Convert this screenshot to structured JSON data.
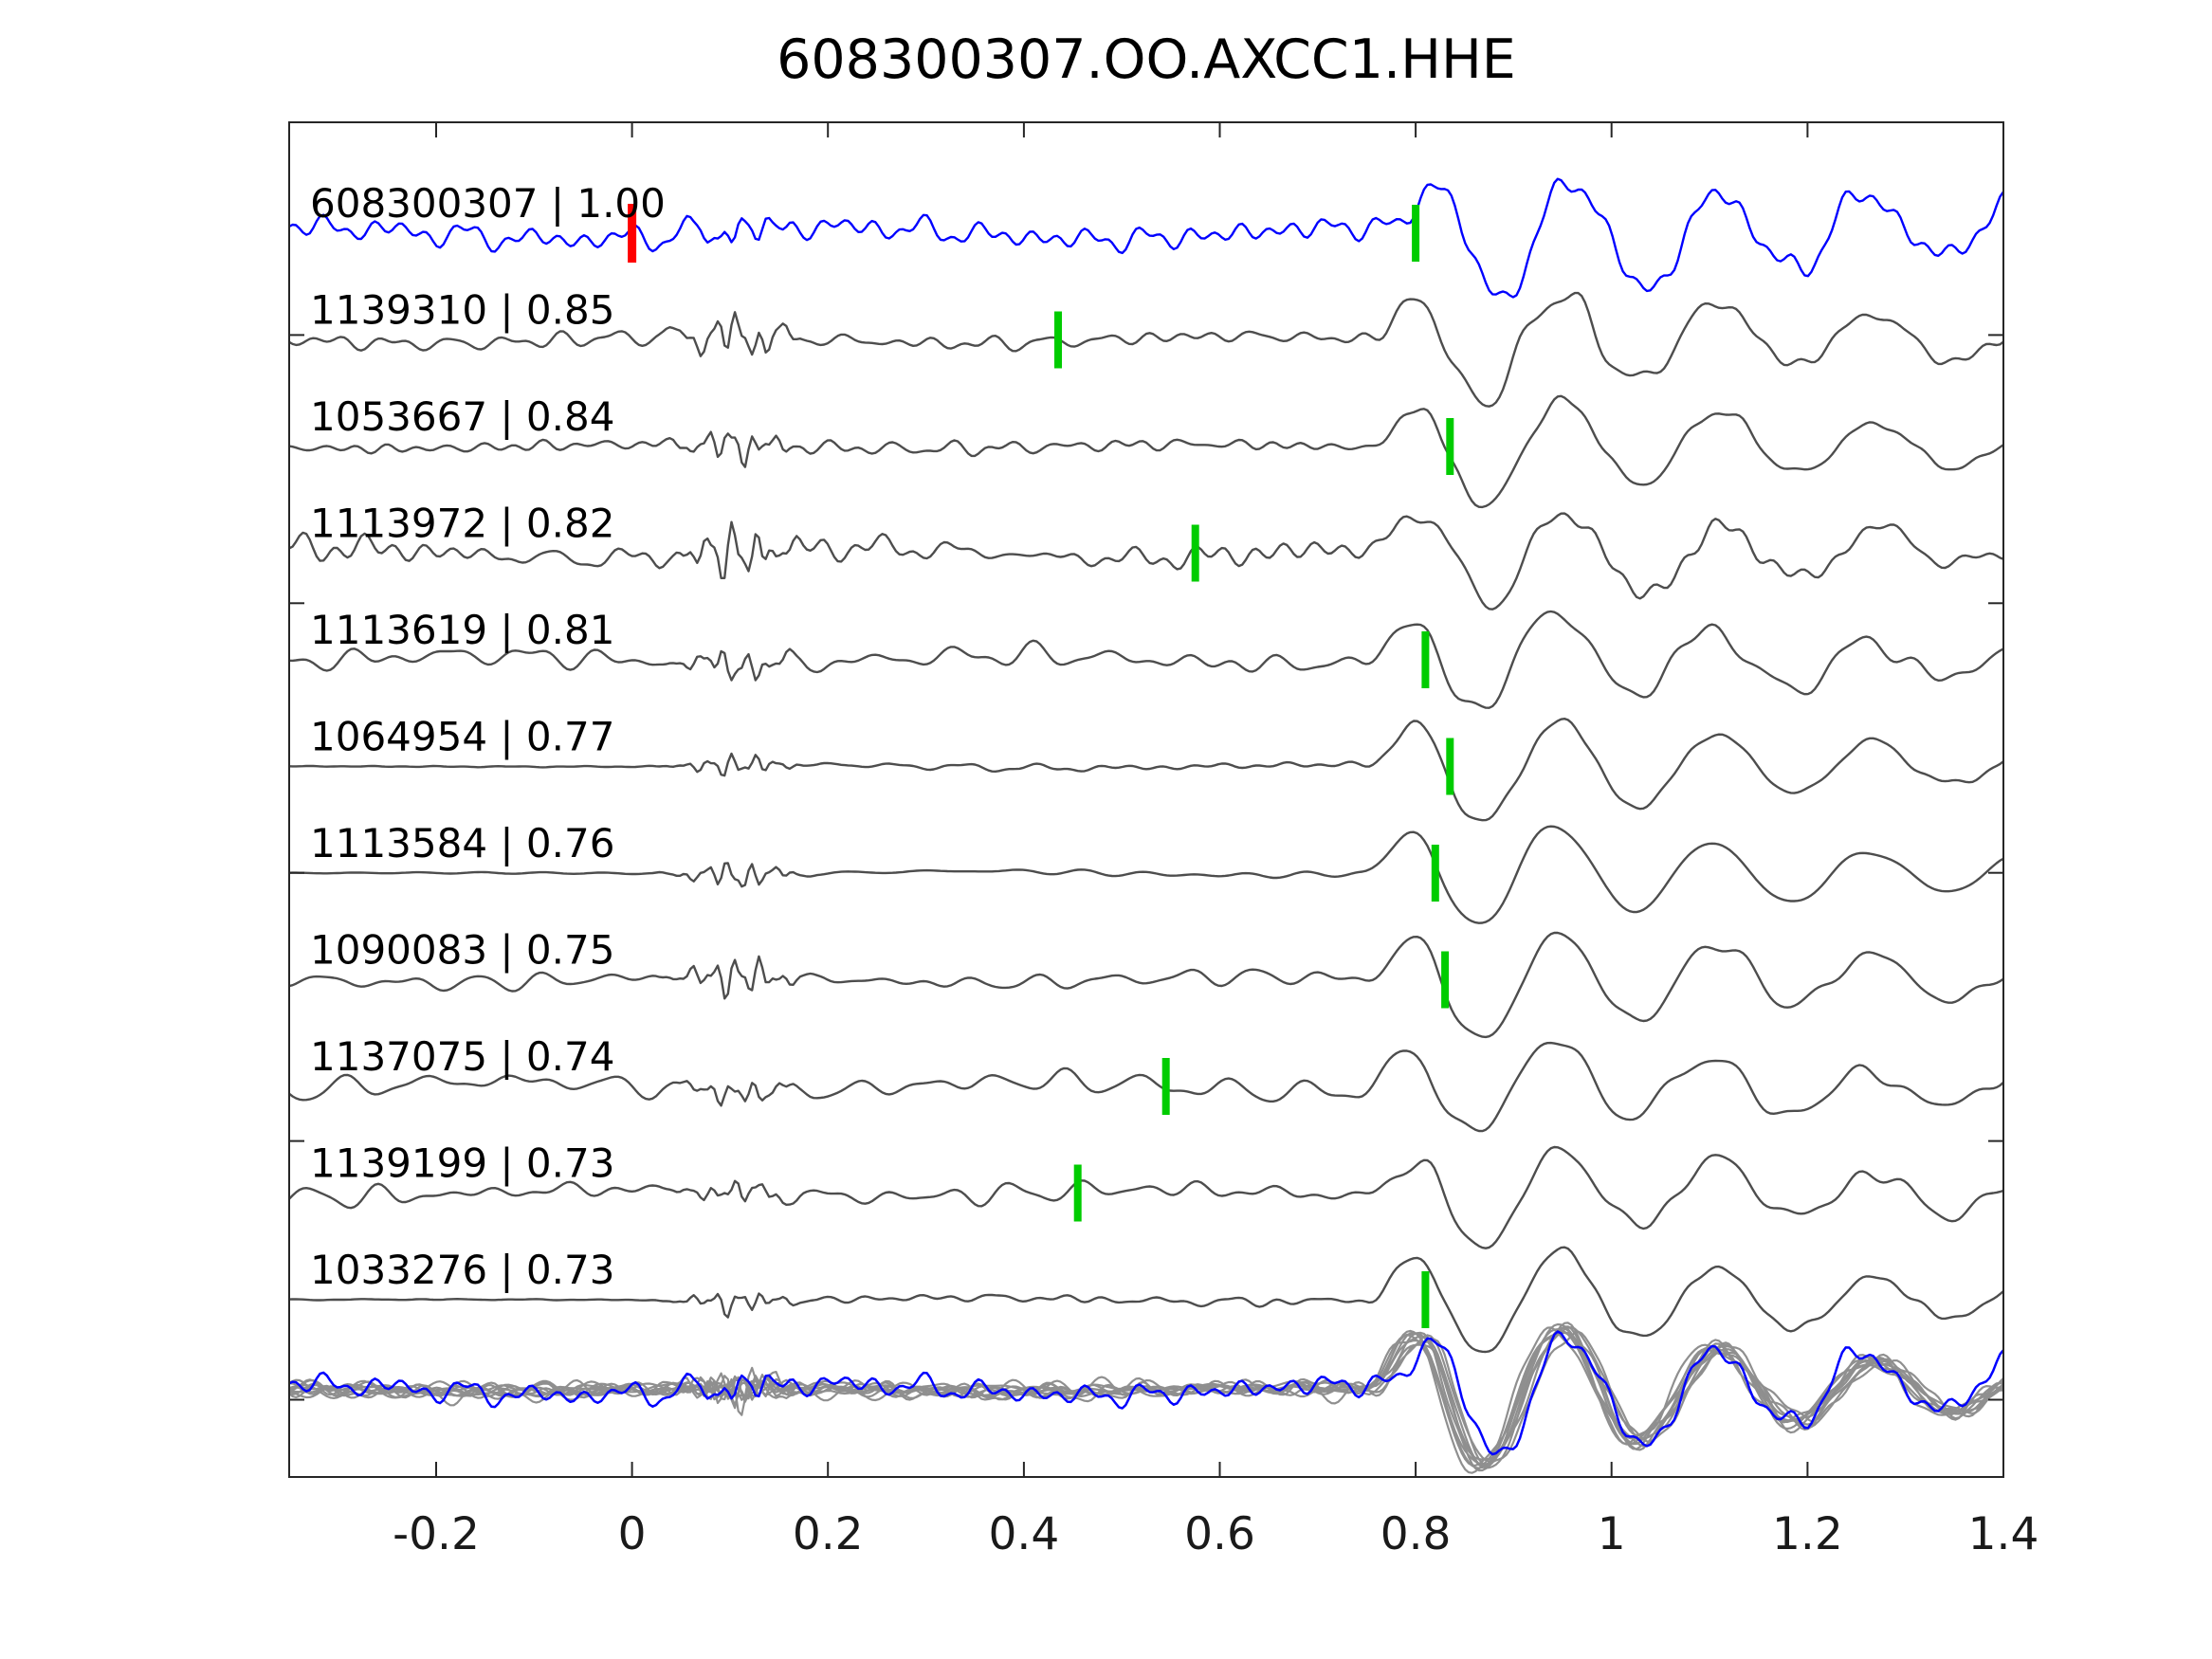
{
  "title": "608300307.OO.AXCC1.HHE",
  "chart_data": {
    "type": "line",
    "variant": "seismic-waveform-correlation-stack",
    "title": "608300307.OO.AXCC1.HHE",
    "xlim": [
      -0.35,
      1.4
    ],
    "grid": false,
    "legend": "none",
    "x_ticks": [
      {
        "value": -0.2,
        "label": "-0.2"
      },
      {
        "value": 0.0,
        "label": "0"
      },
      {
        "value": 0.2,
        "label": "0.2"
      },
      {
        "value": 0.4,
        "label": "0.4"
      },
      {
        "value": 0.6,
        "label": "0.6"
      },
      {
        "value": 0.8,
        "label": "0.8"
      },
      {
        "value": 1.0,
        "label": "1"
      },
      {
        "value": 1.2,
        "label": "1.2"
      },
      {
        "value": 1.4,
        "label": "1.4"
      }
    ],
    "colors": {
      "template_trace": "#0000ff",
      "detection_trace": "#4d4d4d",
      "overlay_trace": "#8f8f8f",
      "pick_marker": "#00cc00",
      "origin_marker": "#ff0000",
      "frame": "#262626",
      "text": "#000000"
    },
    "origin_marker": {
      "trace_index": 0,
      "time": 0.0
    },
    "traces": [
      {
        "id": "608300307",
        "correlation": "1.00",
        "label": "608300307 | 1.00",
        "pick_time": 0.8,
        "role": "template",
        "synth": {
          "seed": 7,
          "noise": 15,
          "burst": 10,
          "amp": 72,
          "t0": 0.778,
          "period": 0.15,
          "decay": 0.55,
          "flat_start": false
        }
      },
      {
        "id": "1139310",
        "correlation": "0.85",
        "label": "1139310 | 0.85",
        "pick_time": 0.435,
        "role": "detection",
        "synth": {
          "seed": 11,
          "noise": 9,
          "burst": 24,
          "amp": 66,
          "t0": 0.75,
          "period": 0.16,
          "decay": 0.45,
          "flat_start": false
        }
      },
      {
        "id": "1053667",
        "correlation": "0.84",
        "label": "1053667 | 0.84",
        "pick_time": 0.835,
        "role": "detection",
        "synth": {
          "seed": 23,
          "noise": 5.5,
          "burst": 20,
          "amp": 64,
          "t0": 0.755,
          "period": 0.16,
          "decay": 0.45,
          "flat_start": false
        }
      },
      {
        "id": "1113972",
        "correlation": "0.82",
        "label": "1113972 | 0.82",
        "pick_time": 0.575,
        "role": "detection",
        "synth": {
          "seed": 31,
          "noise": 13,
          "burst": 30,
          "amp": 58,
          "t0": 0.75,
          "period": 0.16,
          "decay": 0.45,
          "flat_start": false
        }
      },
      {
        "id": "1113619",
        "correlation": "0.81",
        "label": "1113619 | 0.81",
        "pick_time": 0.81,
        "role": "detection",
        "synth": {
          "seed": 41,
          "noise": 11,
          "burst": 18,
          "amp": 60,
          "t0": 0.748,
          "period": 0.16,
          "decay": 0.45,
          "flat_start": false
        }
      },
      {
        "id": "1064954",
        "correlation": "0.77",
        "label": "1064954 | 0.77",
        "pick_time": 0.835,
        "role": "detection",
        "synth": {
          "seed": 53,
          "noise": 4,
          "burst": 14,
          "amp": 64,
          "t0": 0.752,
          "period": 0.16,
          "decay": 0.45,
          "flat_start": true
        }
      },
      {
        "id": "1113584",
        "correlation": "0.76",
        "label": "1113584 | 0.76",
        "pick_time": 0.82,
        "role": "detection",
        "synth": {
          "seed": 61,
          "noise": 5,
          "burst": 17,
          "amp": 62,
          "t0": 0.75,
          "period": 0.16,
          "decay": 0.45,
          "flat_start": true
        }
      },
      {
        "id": "1090083",
        "correlation": "0.75",
        "label": "1090083 | 0.75",
        "pick_time": 0.83,
        "role": "detection",
        "synth": {
          "seed": 71,
          "noise": 8,
          "burst": 26,
          "amp": 66,
          "t0": 0.753,
          "period": 0.16,
          "decay": 0.45,
          "flat_start": false
        }
      },
      {
        "id": "1137075",
        "correlation": "0.74",
        "label": "1137075 | 0.74",
        "pick_time": 0.545,
        "role": "detection",
        "synth": {
          "seed": 83,
          "noise": 13,
          "burst": 14,
          "amp": 56,
          "t0": 0.745,
          "period": 0.16,
          "decay": 0.45,
          "flat_start": false
        }
      },
      {
        "id": "1139199",
        "correlation": "0.73",
        "label": "1139199 | 0.73",
        "pick_time": 0.455,
        "role": "detection",
        "synth": {
          "seed": 97,
          "noise": 9,
          "burst": 12,
          "amp": 58,
          "t0": 0.75,
          "period": 0.16,
          "decay": 0.45,
          "flat_start": false
        }
      },
      {
        "id": "1033276",
        "correlation": "0.73",
        "label": "1033276 | 0.73",
        "pick_time": 0.81,
        "role": "detection",
        "synth": {
          "seed": 103,
          "noise": 5,
          "burst": 14,
          "amp": 64,
          "t0": 0.75,
          "period": 0.16,
          "decay": 0.45,
          "flat_start": true
        }
      }
    ],
    "overlay_stack": {
      "description": "all detections plotted on top of each other with template in blue",
      "gray_members": 10,
      "gray_synth": {
        "seed_base": 211,
        "seed_step": 17,
        "noise_min": 5.5,
        "noise_span": 2.5,
        "burst_min": 8,
        "burst_span": 12,
        "amp_min": 80,
        "amp_span": 13,
        "t0": 0.75,
        "t0_jitter": 0.01,
        "period": 0.16,
        "decay": 0.4
      },
      "template_synth": {
        "seed": 7,
        "noise": 14,
        "burst": 10,
        "amp": 74,
        "t0": 0.775,
        "period": 0.15,
        "decay": 0.5,
        "flat_start": false
      }
    }
  }
}
